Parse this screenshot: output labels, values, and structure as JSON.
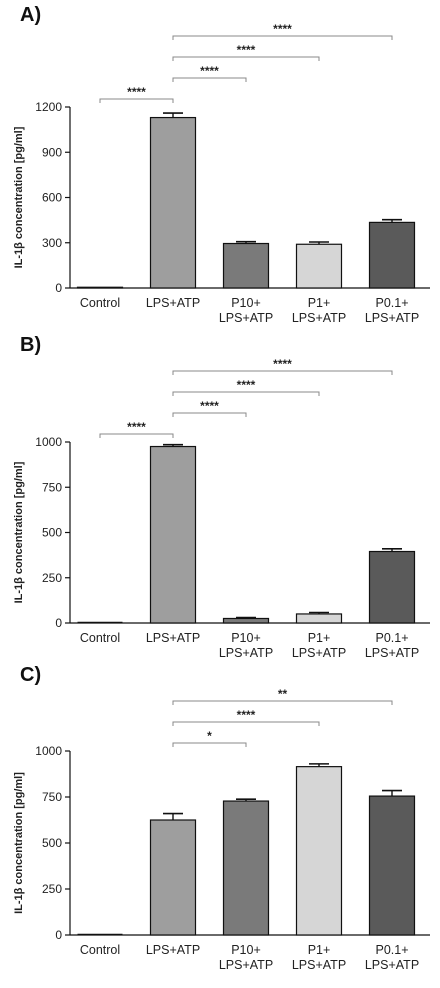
{
  "chart_data": [
    {
      "panel_label": "A)",
      "type": "bar",
      "categories": [
        [
          "Control"
        ],
        [
          "LPS+ATP"
        ],
        [
          "P10+",
          "LPS+ATP"
        ],
        [
          "P1+",
          "LPS+ATP"
        ],
        [
          "P0.1+",
          "LPS+ATP"
        ]
      ],
      "values": [
        5,
        1130,
        295,
        290,
        435
      ],
      "errors": [
        0,
        30,
        12,
        15,
        18
      ],
      "bar_colors": [
        "#9a9a9a",
        "#9e9e9e",
        "#7a7a7a",
        "#d6d6d6",
        "#5a5a5a"
      ],
      "ylabel": "IL-1β concentration [pg/ml]",
      "ylim": [
        0,
        1200
      ],
      "yticks": [
        0,
        300,
        600,
        900,
        1200
      ],
      "significance": [
        {
          "from": 0,
          "to": 1,
          "label": "****"
        },
        {
          "from": 1,
          "to": 2,
          "label": "****"
        },
        {
          "from": 1,
          "to": 3,
          "label": "****"
        },
        {
          "from": 1,
          "to": 4,
          "label": "****"
        }
      ]
    },
    {
      "panel_label": "B)",
      "type": "bar",
      "categories": [
        [
          "Control"
        ],
        [
          "LPS+ATP"
        ],
        [
          "P10+",
          "LPS+ATP"
        ],
        [
          "P1+",
          "LPS+ATP"
        ],
        [
          "P0.1+",
          "LPS+ATP"
        ]
      ],
      "values": [
        0,
        975,
        25,
        50,
        395
      ],
      "errors": [
        0,
        10,
        5,
        8,
        15
      ],
      "bar_colors": [
        "#9a9a9a",
        "#9e9e9e",
        "#7a7a7a",
        "#d6d6d6",
        "#5a5a5a"
      ],
      "ylabel": "IL-1β concentration [pg/ml]",
      "ylim": [
        0,
        1000
      ],
      "yticks": [
        0,
        250,
        500,
        750,
        1000
      ],
      "significance": [
        {
          "from": 0,
          "to": 1,
          "label": "****"
        },
        {
          "from": 1,
          "to": 2,
          "label": "****"
        },
        {
          "from": 1,
          "to": 3,
          "label": "****"
        },
        {
          "from": 1,
          "to": 4,
          "label": "****"
        }
      ]
    },
    {
      "panel_label": "C)",
      "type": "bar",
      "categories": [
        [
          "Control"
        ],
        [
          "LPS+ATP"
        ],
        [
          "P10+",
          "LPS+ATP"
        ],
        [
          "P1+",
          "LPS+ATP"
        ],
        [
          "P0.1+",
          "LPS+ATP"
        ]
      ],
      "values": [
        0,
        625,
        728,
        915,
        755
      ],
      "errors": [
        0,
        35,
        10,
        15,
        30
      ],
      "bar_colors": [
        "#9a9a9a",
        "#9e9e9e",
        "#7a7a7a",
        "#d6d6d6",
        "#5a5a5a"
      ],
      "ylabel": "IL-1β concentration [pg/ml]",
      "ylim": [
        0,
        1000
      ],
      "yticks": [
        0,
        250,
        500,
        750,
        1000
      ],
      "significance": [
        {
          "from": 1,
          "to": 2,
          "label": "*"
        },
        {
          "from": 1,
          "to": 3,
          "label": "****"
        },
        {
          "from": 1,
          "to": 4,
          "label": "**"
        }
      ]
    }
  ]
}
